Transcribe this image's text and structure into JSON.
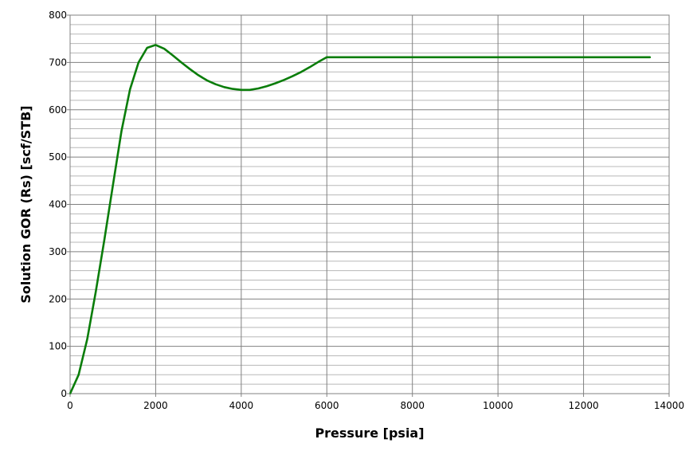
{
  "chart_data": {
    "type": "line",
    "title": "",
    "xlabel": "Pressure [psia]",
    "ylabel": "Solution GOR (Rs) [scf/STB]",
    "xlim": [
      0,
      14000
    ],
    "ylim": [
      0,
      800
    ],
    "x_ticks": [
      0,
      2000,
      4000,
      6000,
      8000,
      10000,
      12000,
      14000
    ],
    "y_ticks": [
      0,
      100,
      200,
      300,
      400,
      500,
      600,
      700,
      800
    ],
    "x_tick_labels": [
      "0",
      "2000",
      "4000",
      "6000",
      "8000",
      "10000",
      "12000",
      "14000"
    ],
    "y_tick_labels": [
      "0",
      "100",
      "200",
      "300",
      "400",
      "500",
      "600",
      "700",
      "800"
    ],
    "y_minor_step": 20,
    "grid": true,
    "series": [
      {
        "color": "#0a7d0a",
        "x": [
          0,
          200,
          400,
          600,
          800,
          1000,
          1200,
          1400,
          1600,
          1800,
          2000,
          2200,
          2400,
          2600,
          2800,
          3000,
          3200,
          3400,
          3600,
          3800,
          4000,
          4200,
          4400,
          4600,
          4800,
          5000,
          5200,
          5400,
          5600,
          5800,
          6000,
          8000,
          10000,
          12000,
          13550
        ],
        "y": [
          0,
          40,
          115,
          215,
          325,
          440,
          555,
          643,
          700,
          731,
          737,
          729,
          715,
          700,
          686,
          673,
          662,
          654,
          648,
          644,
          642,
          642,
          645,
          650,
          656,
          663,
          671,
          680,
          690,
          701,
          711,
          711,
          711,
          711,
          711
        ]
      }
    ]
  }
}
